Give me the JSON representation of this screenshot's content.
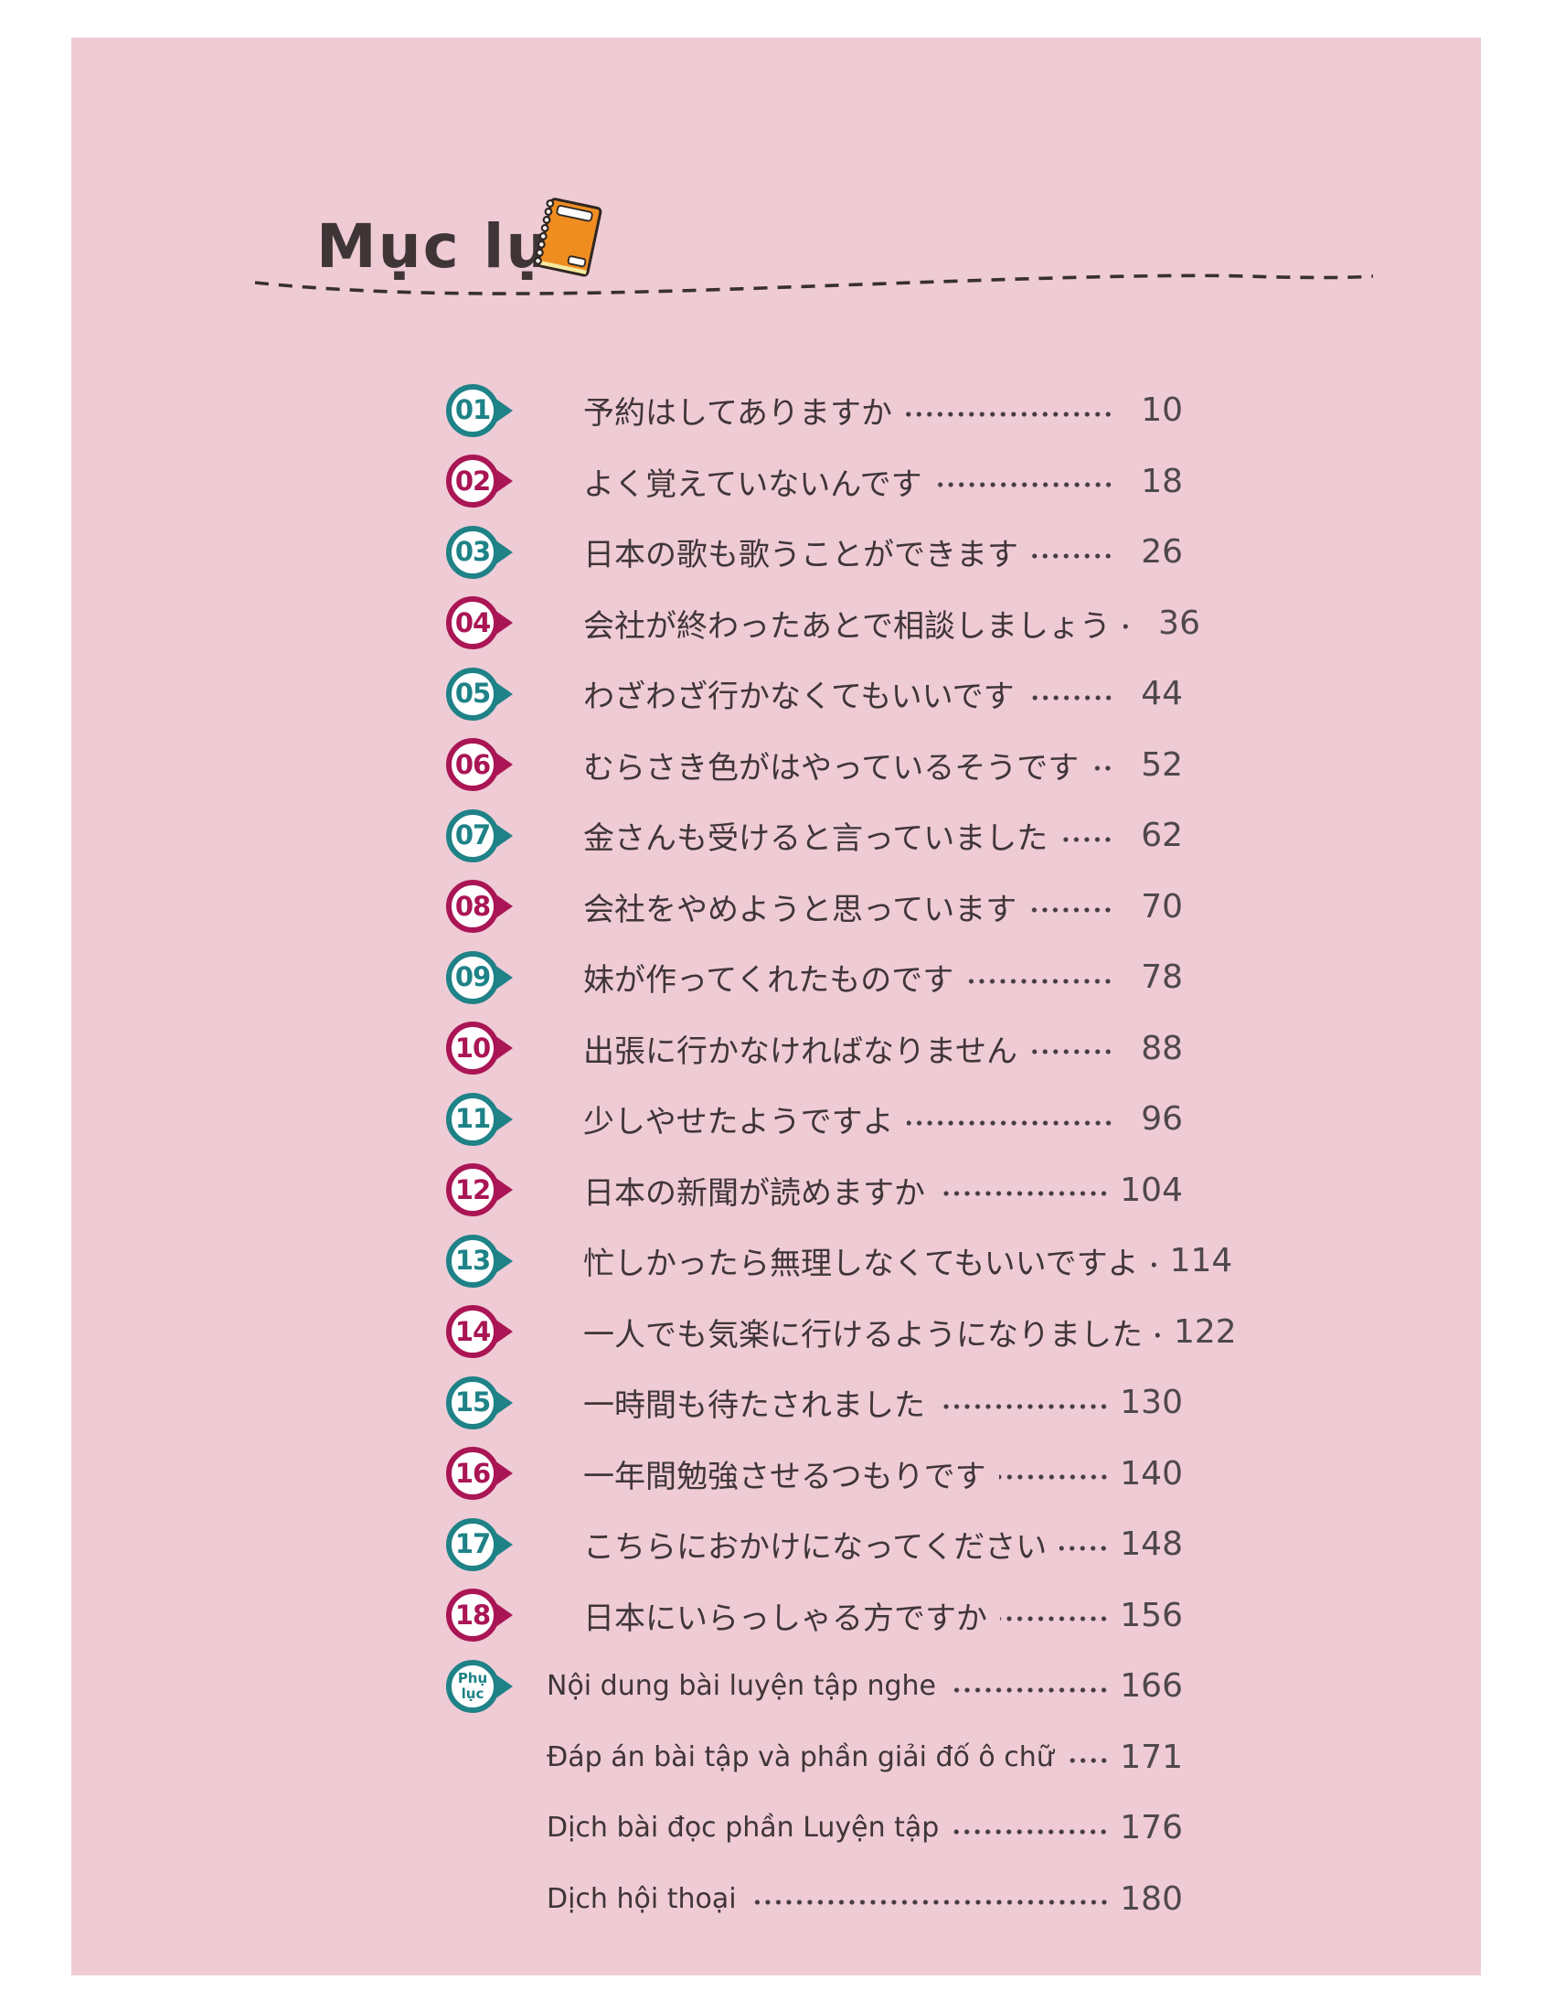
{
  "header": {
    "title": "Mục lục",
    "icon": "notebook-icon"
  },
  "colors": {
    "page_background": "#FFFFFF",
    "panel_pink": "#EFCBD5",
    "teal": "#1E8287",
    "magenta": "#AA1555",
    "text": "#3F3537",
    "page_number": "#4F484B",
    "dot_leader": "#453C3F",
    "notebook_orange": "#EF8D21"
  },
  "toc": {
    "entries": [
      {
        "badge": "01",
        "color": "teal",
        "lang": "jp",
        "title": "予約はしてありますか",
        "page": "10"
      },
      {
        "badge": "02",
        "color": "magenta",
        "lang": "jp",
        "title": "よく覚えていないんです",
        "page": "18"
      },
      {
        "badge": "03",
        "color": "teal",
        "lang": "jp",
        "title": "日本の歌も歌うことができます",
        "page": "26"
      },
      {
        "badge": "04",
        "color": "magenta",
        "lang": "jp",
        "title": "会社が終わったあとで相談しましょう",
        "page": "36"
      },
      {
        "badge": "05",
        "color": "teal",
        "lang": "jp",
        "title": "わざわざ行かなくてもいいです",
        "page": "44"
      },
      {
        "badge": "06",
        "color": "magenta",
        "lang": "jp",
        "title": "むらさき色がはやっているそうです",
        "page": "52"
      },
      {
        "badge": "07",
        "color": "teal",
        "lang": "jp",
        "title": "金さんも受けると言っていました",
        "page": "62"
      },
      {
        "badge": "08",
        "color": "magenta",
        "lang": "jp",
        "title": "会社をやめようと思っています",
        "page": "70"
      },
      {
        "badge": "09",
        "color": "teal",
        "lang": "jp",
        "title": "妹が作ってくれたものです",
        "page": "78"
      },
      {
        "badge": "10",
        "color": "magenta",
        "lang": "jp",
        "title": "出張に行かなければなりません",
        "page": "88"
      },
      {
        "badge": "11",
        "color": "teal",
        "lang": "jp",
        "title": "少しやせたようですよ",
        "page": "96"
      },
      {
        "badge": "12",
        "color": "magenta",
        "lang": "jp",
        "title": "日本の新聞が読めますか",
        "page": "104"
      },
      {
        "badge": "13",
        "color": "teal",
        "lang": "jp",
        "title": "忙しかったら無理しなくてもいいですよ",
        "page": "114"
      },
      {
        "badge": "14",
        "color": "magenta",
        "lang": "jp",
        "title": "一人でも気楽に行けるようになりました",
        "page": "122"
      },
      {
        "badge": "15",
        "color": "teal",
        "lang": "jp",
        "title": "一時間も待たされました",
        "page": "130"
      },
      {
        "badge": "16",
        "color": "magenta",
        "lang": "jp",
        "title": "一年間勉強させるつもりです",
        "page": "140"
      },
      {
        "badge": "17",
        "color": "teal",
        "lang": "jp",
        "title": "こちらにおかけになってください",
        "page": "148"
      },
      {
        "badge": "18",
        "color": "magenta",
        "lang": "jp",
        "title": "日本にいらっしゃる方ですか",
        "page": "156"
      },
      {
        "badge": "Phụ lục",
        "color": "teal",
        "lang": "vn",
        "title": "Nội dung bài luyện tập nghe",
        "page": "166"
      },
      {
        "badge": null,
        "color": null,
        "lang": "vn",
        "title": "Đáp án bài tập và phần giải đố ô chữ",
        "page": "171"
      },
      {
        "badge": null,
        "color": null,
        "lang": "vn",
        "title": "Dịch bài đọc phần Luyện tập",
        "page": "176"
      },
      {
        "badge": null,
        "color": null,
        "lang": "vn",
        "title": "Dịch hội thoại",
        "page": "180"
      }
    ]
  }
}
